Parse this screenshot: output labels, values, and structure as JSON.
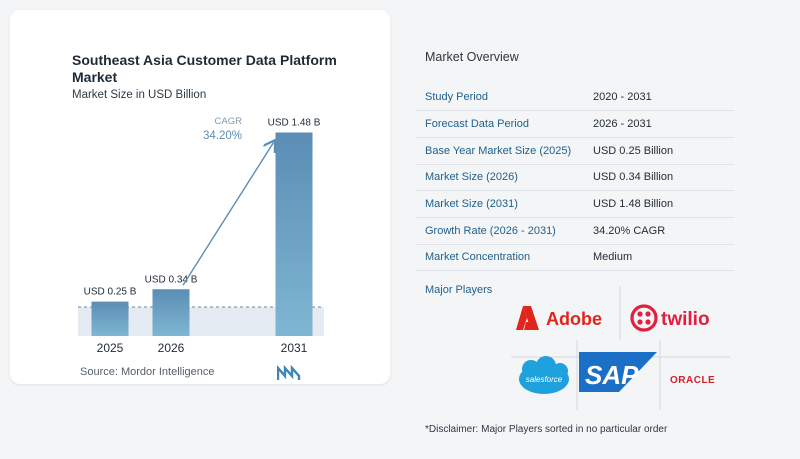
{
  "chart_data": {
    "type": "bar",
    "title": "Southeast Asia Customer Data Platform Market",
    "subtitle": "Market Size in USD Billion",
    "categories": [
      "2025",
      "2026",
      "2031"
    ],
    "values": [
      0.25,
      0.34,
      1.48
    ],
    "value_labels": [
      "USD 0.25 B",
      "USD 0.34 B",
      "USD 1.48 B"
    ],
    "cagr_label": "CAGR",
    "cagr_value": "34.20%",
    "ylim": [
      0,
      1.6
    ],
    "grid": false,
    "colors": {
      "bar_top": "#5b8db5",
      "bar_bottom": "#7fb2cf",
      "arrow": "#5b8db5",
      "baseline_band": "#dde6ef"
    }
  },
  "source": "Source:  Mordor Intelligence",
  "overview": {
    "title": "Market Overview",
    "rows": [
      {
        "key": "Study Period",
        "value": "2020 - 2031"
      },
      {
        "key": "Forecast Data Period",
        "value": "2026 - 2031"
      },
      {
        "key": "Base Year Market Size (2025)",
        "value": "USD 0.25 Billion"
      },
      {
        "key": "Market Size (2026)",
        "value": "USD 0.34 Billion"
      },
      {
        "key": "Market Size (2031)",
        "value": "USD 1.48 Billion"
      },
      {
        "key": "Growth Rate (2026 - 2031)",
        "value": "34.20% CAGR"
      },
      {
        "key": "Market Concentration",
        "value": "Medium"
      }
    ],
    "players_label": "Major Players",
    "players": [
      "Adobe",
      "twilio",
      "salesforce",
      "SAP",
      "ORACLE"
    ],
    "disclaimer": "*Disclaimer: Major Players sorted in no particular order"
  }
}
